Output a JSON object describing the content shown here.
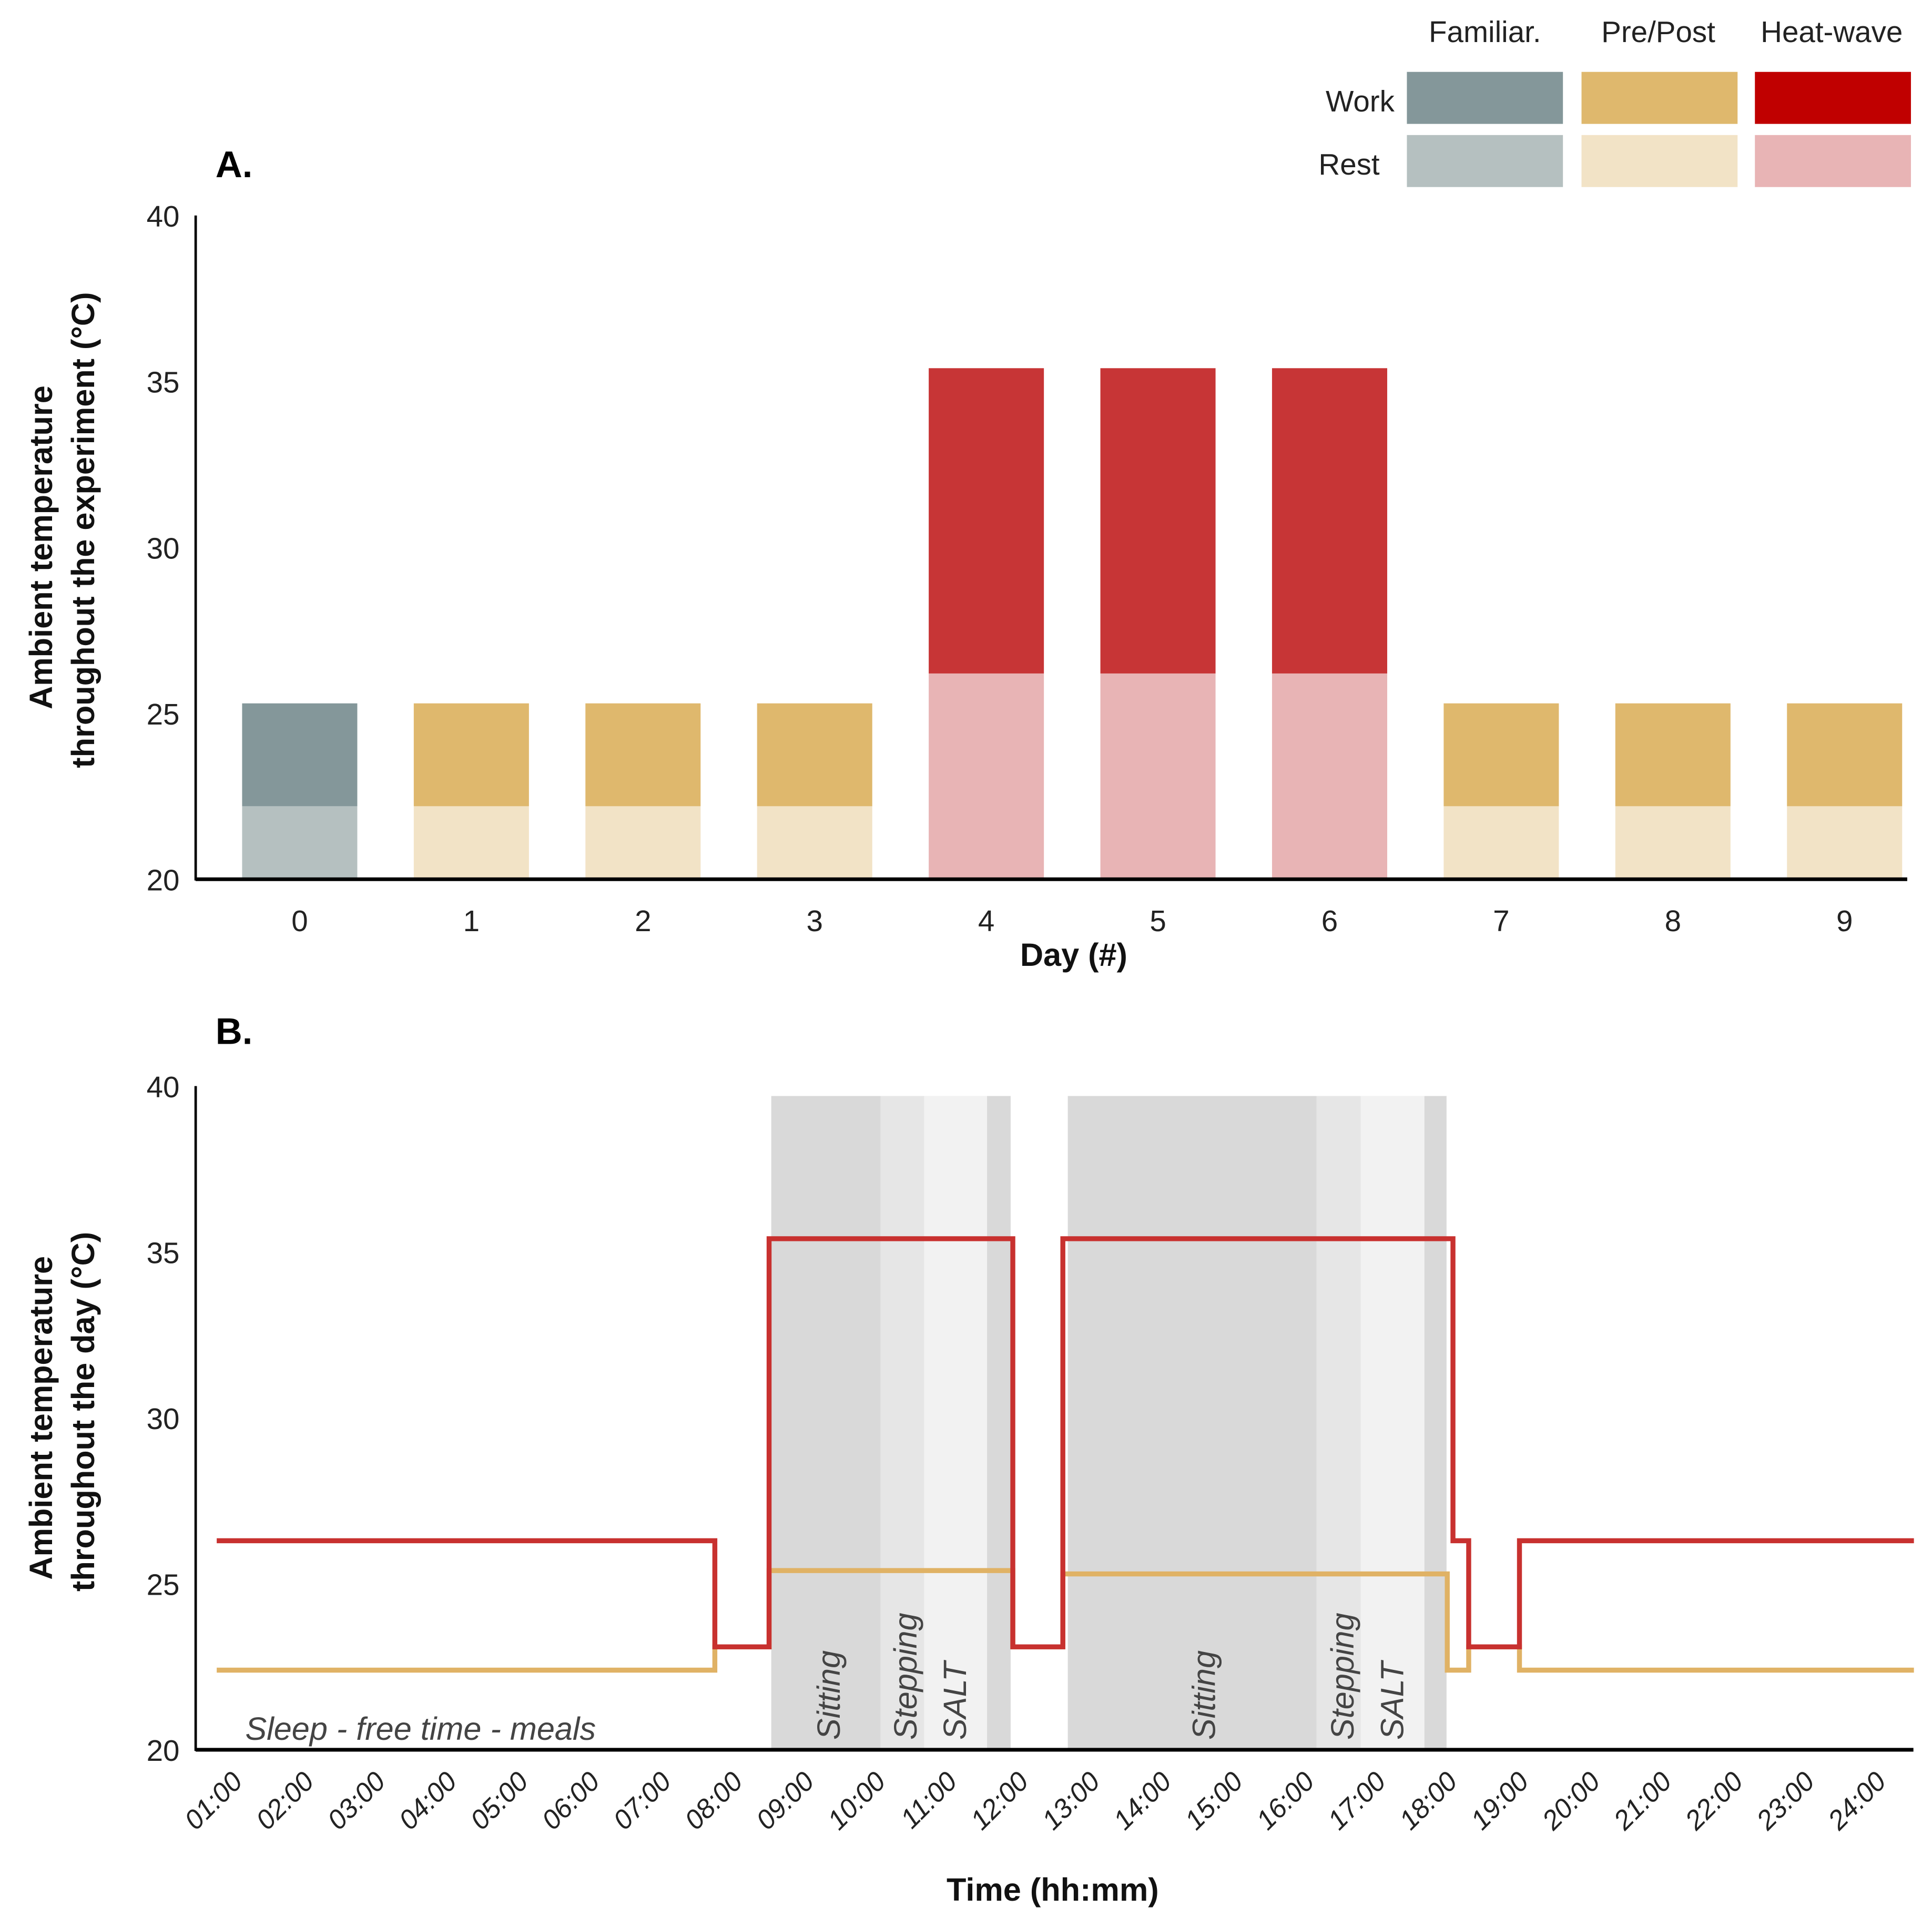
{
  "legend": {
    "columns": [
      "Familiar.",
      "Pre/Post",
      "Heat-wave"
    ],
    "rows": [
      "Work",
      "Rest"
    ],
    "colors": {
      "Familiar.": {
        "Work": "#84979a",
        "Rest": "#b5c0c0"
      },
      "Pre/Post": {
        "Work": "#dfb86d",
        "Rest": "#f2e3c6"
      },
      "Heat-wave": {
        "Work": "#c00000",
        "Rest": "#e8b4b5"
      }
    }
  },
  "chart_data": [
    {
      "panel": "A.",
      "type": "bar",
      "stacked": "overlay",
      "xlabel": "Day (#)",
      "ylabel": [
        "Ambient temperature",
        "throughout the experiment (°C)"
      ],
      "ylim": [
        20,
        40
      ],
      "yticks": [
        "20",
        "25",
        "30",
        "35",
        "40"
      ],
      "categories": [
        "0",
        "1",
        "2",
        "3",
        "4",
        "5",
        "6",
        "7",
        "8",
        "9"
      ],
      "condition": [
        "Familiar.",
        "Pre/Post",
        "Pre/Post",
        "Pre/Post",
        "Heat-wave",
        "Heat-wave",
        "Heat-wave",
        "Pre/Post",
        "Pre/Post",
        "Pre/Post"
      ],
      "series": [
        {
          "name": "Work",
          "values": [
            25.3,
            25.3,
            25.3,
            25.3,
            35.4,
            35.4,
            35.4,
            25.3,
            25.3,
            25.3
          ]
        },
        {
          "name": "Rest",
          "values": [
            22.2,
            22.2,
            22.2,
            22.2,
            26.2,
            26.2,
            26.2,
            22.2,
            22.2,
            22.2
          ]
        }
      ],
      "bar_colors": {
        "work": "#c73536",
        "rest_hw": "#e8b4b5"
      }
    },
    {
      "panel": "B.",
      "type": "line",
      "step": true,
      "xlabel": "Time (hh:mm)",
      "ylabel": [
        "Ambient temperature",
        "throughout the day (°C)"
      ],
      "ylim": [
        20,
        40
      ],
      "xlim": [
        0.7,
        24.75
      ],
      "yticks": [
        "20",
        "25",
        "30",
        "35",
        "40"
      ],
      "xticks": [
        "01:00",
        "02:00",
        "03:00",
        "04:00",
        "05:00",
        "06:00",
        "07:00",
        "08:00",
        "09:00",
        "10:00",
        "11:00",
        "12:00",
        "13:00",
        "14:00",
        "15:00",
        "16:00",
        "17:00",
        "18:00",
        "19:00",
        "20:00",
        "21:00",
        "22:00",
        "23:00",
        "24:00"
      ],
      "series": [
        {
          "name": "Heat-wave",
          "color": "#c8312f",
          "x": [
            1,
            7.97,
            7.97,
            8.73,
            8.73,
            12.14,
            12.14,
            12.84,
            12.84,
            18.3,
            18.3,
            18.52,
            18.52,
            19.23,
            19.23,
            24.75
          ],
          "y": [
            26.3,
            26.3,
            23.1,
            23.1,
            35.4,
            35.4,
            23.1,
            23.1,
            35.4,
            35.4,
            26.3,
            26.3,
            23.1,
            23.1,
            26.3,
            26.3
          ]
        },
        {
          "name": "Pre/Post",
          "color": "#e0b265",
          "x": [
            1,
            7.97,
            7.97,
            8.73,
            8.73,
            12.14,
            12.14,
            12.84,
            12.84,
            18.22,
            18.22,
            18.52,
            18.52,
            19.23,
            19.23,
            24.75
          ],
          "y": [
            22.4,
            22.4,
            23.1,
            23.1,
            25.4,
            25.4,
            23.1,
            23.1,
            25.3,
            25.3,
            22.4,
            22.4,
            23.1,
            23.1,
            22.4,
            22.4
          ]
        }
      ],
      "bands": [
        {
          "from": 8.76,
          "to": 10.29,
          "color": "#d9d9d9"
        },
        {
          "from": 10.29,
          "to": 10.9,
          "color": "#e6e6e6"
        },
        {
          "from": 10.9,
          "to": 11.78,
          "color": "#f2f2f2"
        },
        {
          "from": 11.78,
          "to": 12.11,
          "color": "#d9d9d9"
        },
        {
          "from": 12.91,
          "to": 16.39,
          "color": "#d9d9d9"
        },
        {
          "from": 16.39,
          "to": 17.01,
          "color": "#e6e6e6"
        },
        {
          "from": 17.01,
          "to": 17.9,
          "color": "#f2f2f2"
        },
        {
          "from": 17.9,
          "to": 18.21,
          "color": "#d9d9d9"
        }
      ],
      "band_top": 39.7,
      "annotations": {
        "sleep": "Sleep - free time - meals",
        "sitting": "Sitting",
        "stepping": "Stepping",
        "salt": "SALT"
      }
    }
  ]
}
